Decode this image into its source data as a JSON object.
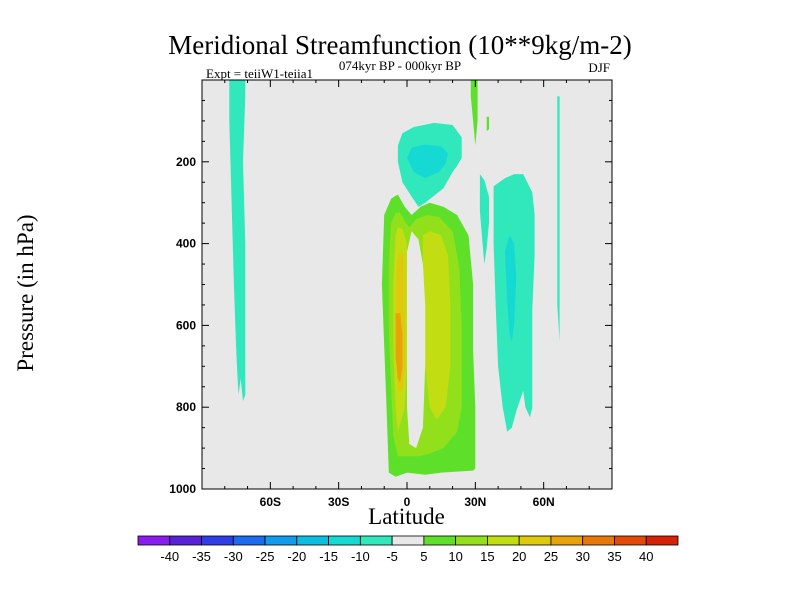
{
  "header": {
    "title": "Meridional Streamfunction (10**9kg/m-2)",
    "expt_label": "Expt = teiiW1-teiia1",
    "period_label": "074kyr BP - 000kyr BP",
    "season_label": "DJF"
  },
  "chart_data": {
    "type": "heatmap",
    "title": "Meridional Streamfunction (10**9kg/m-2)",
    "xlabel": "Latitude",
    "ylabel": "Pressure (in hPa)",
    "xlim": [
      -90,
      90
    ],
    "ylim": [
      1000,
      0
    ],
    "y_inverted": true,
    "grid": false,
    "x_ticks": [
      {
        "value": -60,
        "label": "60S"
      },
      {
        "value": -30,
        "label": "30S"
      },
      {
        "value": 0,
        "label": "0"
      },
      {
        "value": 30,
        "label": "30N"
      },
      {
        "value": 60,
        "label": "60N"
      }
    ],
    "y_ticks": [
      {
        "value": 200,
        "label": "200"
      },
      {
        "value": 400,
        "label": "400"
      },
      {
        "value": 600,
        "label": "600"
      },
      {
        "value": 800,
        "label": "800"
      },
      {
        "value": 1000,
        "label": "1000"
      }
    ],
    "background_color": "#e8e8e8",
    "colorbar": {
      "placement": "bottom",
      "levels": [
        -40,
        -35,
        -30,
        -25,
        -20,
        -15,
        -10,
        -5,
        5,
        10,
        15,
        20,
        25,
        30,
        35,
        40
      ],
      "colors": [
        "#8a1cf0",
        "#5a22d8",
        "#2f3ee6",
        "#1d6cf0",
        "#119cec",
        "#0cbde2",
        "#16d9d4",
        "#30e8bc",
        "#e8e8e8",
        "#5ee02a",
        "#92e01c",
        "#c2de12",
        "#e0c80c",
        "#e8a30a",
        "#e8770a",
        "#e24a08",
        "#d62206"
      ]
    },
    "regions": [
      {
        "fill": "#30e8bc",
        "points": [
          [
            -78,
            0
          ],
          [
            -71,
            0
          ],
          [
            -71,
            40
          ],
          [
            -72,
            200
          ],
          [
            -71,
            400
          ],
          [
            -71,
            700
          ],
          [
            -71,
            770
          ],
          [
            -72,
            785
          ],
          [
            -73,
            730
          ],
          [
            -74,
            770
          ],
          [
            -75,
            660
          ],
          [
            -76,
            500
          ],
          [
            -77,
            300
          ],
          [
            -78,
            100
          ]
        ]
      },
      {
        "fill": "#30e8bc",
        "points": [
          [
            -2,
            130
          ],
          [
            3,
            115
          ],
          [
            12,
            105
          ],
          [
            20,
            110
          ],
          [
            24,
            140
          ],
          [
            24,
            190
          ],
          [
            22,
            210
          ],
          [
            20,
            225
          ],
          [
            16,
            265
          ],
          [
            8,
            300
          ],
          [
            5,
            310
          ],
          [
            2,
            285
          ],
          [
            -2,
            250
          ],
          [
            -4,
            200
          ],
          [
            -4,
            160
          ]
        ]
      },
      {
        "fill": "#16d9d4",
        "points": [
          [
            2,
            165
          ],
          [
            8,
            158
          ],
          [
            15,
            162
          ],
          [
            18,
            180
          ],
          [
            17,
            205
          ],
          [
            14,
            225
          ],
          [
            8,
            240
          ],
          [
            3,
            225
          ],
          [
            0,
            190
          ]
        ]
      },
      {
        "fill": "#5ee02a",
        "points": [
          [
            -10,
            330
          ],
          [
            -7,
            290
          ],
          [
            -4,
            280
          ],
          [
            -1,
            310
          ],
          [
            2,
            330
          ],
          [
            6,
            310
          ],
          [
            10,
            300
          ],
          [
            16,
            310
          ],
          [
            22,
            330
          ],
          [
            27,
            380
          ],
          [
            29,
            500
          ],
          [
            29,
            660
          ],
          [
            30,
            800
          ],
          [
            30,
            950
          ],
          [
            29,
            955
          ],
          [
            15,
            960
          ],
          [
            8,
            965
          ],
          [
            0,
            960
          ],
          [
            -5,
            970
          ],
          [
            -8,
            960
          ],
          [
            -9,
            800
          ],
          [
            -10,
            650
          ],
          [
            -11,
            500
          ]
        ]
      },
      {
        "fill": "#92e01c",
        "points": [
          [
            -7,
            350
          ],
          [
            -5,
            325
          ],
          [
            -3,
            325
          ],
          [
            -1,
            345
          ],
          [
            1,
            360
          ],
          [
            4,
            340
          ],
          [
            9,
            330
          ],
          [
            14,
            335
          ],
          [
            20,
            370
          ],
          [
            23,
            460
          ],
          [
            24,
            600
          ],
          [
            24,
            700
          ],
          [
            24,
            800
          ],
          [
            22,
            860
          ],
          [
            16,
            900
          ],
          [
            9,
            915
          ],
          [
            5,
            920
          ],
          [
            1,
            920
          ],
          [
            -4,
            920
          ],
          [
            -6,
            870
          ],
          [
            -7,
            750
          ],
          [
            -8,
            600
          ],
          [
            -8,
            450
          ]
        ]
      },
      {
        "fill": "#c2de12",
        "points": [
          [
            -5,
            380
          ],
          [
            -4,
            360
          ],
          [
            -2,
            365
          ],
          [
            0,
            400
          ],
          [
            0,
            500
          ],
          [
            0,
            600
          ],
          [
            0,
            700
          ],
          [
            -1,
            800
          ],
          [
            -4,
            860
          ],
          [
            -5,
            800
          ],
          [
            -6,
            650
          ],
          [
            -6,
            500
          ]
        ]
      },
      {
        "fill": "#c2de12",
        "points": [
          [
            7,
            380
          ],
          [
            10,
            370
          ],
          [
            15,
            380
          ],
          [
            18,
            430
          ],
          [
            19,
            550
          ],
          [
            19,
            700
          ],
          [
            17,
            800
          ],
          [
            13,
            830
          ],
          [
            10,
            800
          ],
          [
            8,
            700
          ],
          [
            7,
            550
          ]
        ]
      },
      {
        "fill": "#e0c80c",
        "points": [
          [
            -4,
            430
          ],
          [
            -2,
            420
          ],
          [
            -1,
            460
          ],
          [
            -1,
            560
          ],
          [
            -1,
            700
          ],
          [
            -2,
            760
          ],
          [
            -4,
            760
          ],
          [
            -5,
            650
          ],
          [
            -5,
            520
          ]
        ]
      },
      {
        "fill": "#e8a30a",
        "points": [
          [
            -5,
            570
          ],
          [
            -3,
            570
          ],
          [
            -2,
            620
          ],
          [
            -2,
            700
          ],
          [
            -3,
            740
          ],
          [
            -4,
            730
          ],
          [
            -5,
            680
          ],
          [
            -5,
            620
          ]
        ]
      },
      {
        "fill": "#e8e8e8",
        "points": [
          [
            0,
            420
          ],
          [
            2,
            370
          ],
          [
            5,
            390
          ],
          [
            7,
            450
          ],
          [
            8,
            550
          ],
          [
            8,
            700
          ],
          [
            7,
            850
          ],
          [
            4,
            900
          ],
          [
            1,
            890
          ],
          [
            0,
            800
          ],
          [
            0,
            600
          ]
        ]
      },
      {
        "fill": "#5ee02a",
        "points": [
          [
            28,
            0
          ],
          [
            31,
            0
          ],
          [
            31,
            100
          ],
          [
            30,
            160
          ],
          [
            29,
            100
          ],
          [
            28,
            40
          ]
        ]
      },
      {
        "fill": "#5ee02a",
        "points": [
          [
            35,
            90
          ],
          [
            36,
            90
          ],
          [
            36,
            120
          ],
          [
            35,
            125
          ]
        ]
      },
      {
        "fill": "#30e8bc",
        "points": [
          [
            32,
            230
          ],
          [
            34,
            245
          ],
          [
            36,
            285
          ],
          [
            36,
            350
          ],
          [
            35,
            410
          ],
          [
            34,
            450
          ],
          [
            33,
            390
          ],
          [
            32,
            320
          ]
        ]
      },
      {
        "fill": "#30e8bc",
        "points": [
          [
            38,
            260
          ],
          [
            43,
            240
          ],
          [
            47,
            230
          ],
          [
            51,
            230
          ],
          [
            55,
            275
          ],
          [
            56,
            330
          ],
          [
            56,
            430
          ],
          [
            55,
            560
          ],
          [
            55,
            700
          ],
          [
            55,
            800
          ],
          [
            54,
            825
          ],
          [
            52,
            800
          ],
          [
            51,
            760
          ],
          [
            48,
            810
          ],
          [
            46,
            850
          ],
          [
            44,
            860
          ],
          [
            42,
            800
          ],
          [
            40,
            700
          ],
          [
            39,
            560
          ],
          [
            38,
            400
          ]
        ]
      },
      {
        "fill": "#16d9d4",
        "points": [
          [
            43,
            420
          ],
          [
            45,
            380
          ],
          [
            47,
            400
          ],
          [
            48,
            480
          ],
          [
            47,
            600
          ],
          [
            46,
            640
          ],
          [
            45,
            620
          ],
          [
            44,
            540
          ]
        ]
      },
      {
        "fill": "#30e8bc",
        "points": [
          [
            66,
            40
          ],
          [
            67,
            40
          ],
          [
            67,
            200
          ],
          [
            67,
            500
          ],
          [
            67,
            640
          ],
          [
            66,
            550
          ],
          [
            66,
            300
          ]
        ]
      }
    ]
  }
}
